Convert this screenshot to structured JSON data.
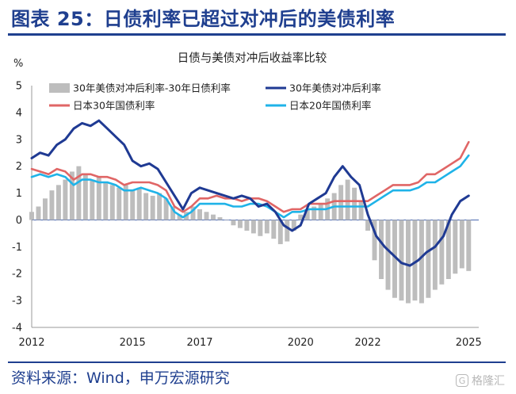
{
  "header": {
    "title": "图表 25：日债利率已超过对冲后的美债利率"
  },
  "footer": {
    "source": "资料来源：Wind，申万宏源研究",
    "watermark": "格隆汇",
    "watermark_logo": "G"
  },
  "colors": {
    "spread": "#bdbdbd",
    "us_hedged": "#1f3a93",
    "jp30": "#e06666",
    "jp20": "#1fb3e8",
    "brand": "#1f3f8f"
  },
  "chart_data": {
    "type": "line",
    "title": "日债与美债对冲后收益率比较",
    "ylabel": "%",
    "ylim": [
      -4,
      5
    ],
    "yticks": [
      5,
      4,
      3,
      2,
      1,
      0,
      -1,
      -2,
      -3,
      -4
    ],
    "xlim": [
      2012,
      2025.3
    ],
    "xticks": [
      2012,
      2015,
      2017,
      2020,
      2022,
      2025
    ],
    "legend": "top",
    "series": [
      {
        "name": "30年美债对冲后利率-30年日债利率",
        "type": "bar",
        "x": [
          2012.0,
          2012.2,
          2012.4,
          2012.6,
          2012.8,
          2013.0,
          2013.2,
          2013.4,
          2013.6,
          2013.8,
          2014.0,
          2014.2,
          2014.4,
          2014.6,
          2014.8,
          2015.0,
          2015.2,
          2015.4,
          2015.6,
          2015.8,
          2016.0,
          2016.2,
          2016.4,
          2016.6,
          2016.8,
          2017.0,
          2017.2,
          2017.4,
          2017.6,
          2017.8,
          2018.0,
          2018.2,
          2018.4,
          2018.6,
          2018.8,
          2019.0,
          2019.2,
          2019.4,
          2019.6,
          2019.8,
          2020.0,
          2020.2,
          2020.4,
          2020.6,
          2020.8,
          2021.0,
          2021.2,
          2021.4,
          2021.6,
          2021.8,
          2022.0,
          2022.2,
          2022.4,
          2022.6,
          2022.8,
          2023.0,
          2023.2,
          2023.4,
          2023.6,
          2023.8,
          2024.0,
          2024.2,
          2024.4,
          2024.6,
          2024.8,
          2025.0
        ],
        "values": [
          0.3,
          0.5,
          0.8,
          1.1,
          1.3,
          1.5,
          1.8,
          2.0,
          1.7,
          1.5,
          1.6,
          1.4,
          1.3,
          1.2,
          1.3,
          1.1,
          1.2,
          1.0,
          0.9,
          1.0,
          0.8,
          0.5,
          0.2,
          0.3,
          0.5,
          0.4,
          0.3,
          0.2,
          0.1,
          0.0,
          -0.2,
          -0.3,
          -0.4,
          -0.5,
          -0.6,
          -0.5,
          -0.7,
          -0.9,
          -0.8,
          -0.4,
          0.2,
          0.4,
          0.5,
          0.6,
          0.8,
          1.0,
          1.3,
          1.5,
          1.2,
          0.7,
          -0.4,
          -1.5,
          -2.2,
          -2.6,
          -2.9,
          -3.0,
          -3.1,
          -3.0,
          -3.1,
          -2.9,
          -2.6,
          -2.4,
          -2.2,
          -2.0,
          -1.8,
          -1.9
        ]
      },
      {
        "name": "30年美债对冲后利率",
        "type": "line",
        "x": [
          2012.0,
          2012.25,
          2012.5,
          2012.75,
          2013.0,
          2013.25,
          2013.5,
          2013.75,
          2014.0,
          2014.25,
          2014.5,
          2014.75,
          2015.0,
          2015.25,
          2015.5,
          2015.75,
          2016.0,
          2016.25,
          2016.5,
          2016.75,
          2017.0,
          2017.25,
          2017.5,
          2017.75,
          2018.0,
          2018.25,
          2018.5,
          2018.75,
          2019.0,
          2019.25,
          2019.5,
          2019.75,
          2020.0,
          2020.25,
          2020.5,
          2020.75,
          2021.0,
          2021.25,
          2021.5,
          2021.75,
          2022.0,
          2022.25,
          2022.5,
          2022.75,
          2023.0,
          2023.25,
          2023.5,
          2023.75,
          2024.0,
          2024.25,
          2024.5,
          2024.75,
          2025.0
        ],
        "values": [
          2.3,
          2.5,
          2.4,
          2.8,
          3.0,
          3.4,
          3.6,
          3.5,
          3.7,
          3.4,
          3.1,
          2.8,
          2.2,
          2.0,
          2.1,
          1.9,
          1.4,
          0.9,
          0.4,
          1.0,
          1.2,
          1.1,
          1.0,
          0.9,
          0.8,
          0.9,
          0.8,
          0.5,
          0.6,
          0.3,
          -0.2,
          -0.4,
          -0.2,
          0.6,
          0.8,
          1.0,
          1.6,
          2.0,
          1.6,
          1.3,
          0.2,
          -0.6,
          -1.0,
          -1.3,
          -1.6,
          -1.7,
          -1.5,
          -1.2,
          -1.0,
          -0.6,
          0.2,
          0.7,
          0.9
        ]
      },
      {
        "name": "日本30年国债利率",
        "type": "line",
        "x": [
          2012.0,
          2012.25,
          2012.5,
          2012.75,
          2013.0,
          2013.25,
          2013.5,
          2013.75,
          2014.0,
          2014.25,
          2014.5,
          2014.75,
          2015.0,
          2015.25,
          2015.5,
          2015.75,
          2016.0,
          2016.25,
          2016.5,
          2016.75,
          2017.0,
          2017.25,
          2017.5,
          2017.75,
          2018.0,
          2018.25,
          2018.5,
          2018.75,
          2019.0,
          2019.25,
          2019.5,
          2019.75,
          2020.0,
          2020.25,
          2020.5,
          2020.75,
          2021.0,
          2021.25,
          2021.5,
          2021.75,
          2022.0,
          2022.25,
          2022.5,
          2022.75,
          2023.0,
          2023.25,
          2023.5,
          2023.75,
          2024.0,
          2024.25,
          2024.5,
          2024.75,
          2025.0
        ],
        "values": [
          1.9,
          1.8,
          1.7,
          1.9,
          1.8,
          1.5,
          1.7,
          1.7,
          1.6,
          1.6,
          1.5,
          1.3,
          1.4,
          1.4,
          1.4,
          1.3,
          1.1,
          0.5,
          0.3,
          0.5,
          0.8,
          0.8,
          0.9,
          0.8,
          0.8,
          0.7,
          0.8,
          0.8,
          0.7,
          0.5,
          0.3,
          0.4,
          0.4,
          0.6,
          0.6,
          0.6,
          0.7,
          0.7,
          0.7,
          0.7,
          0.7,
          0.9,
          1.1,
          1.3,
          1.3,
          1.3,
          1.4,
          1.7,
          1.7,
          1.9,
          2.1,
          2.3,
          2.9
        ]
      },
      {
        "name": "日本20年国债利率",
        "type": "line",
        "x": [
          2012.0,
          2012.25,
          2012.5,
          2012.75,
          2013.0,
          2013.25,
          2013.5,
          2013.75,
          2014.0,
          2014.25,
          2014.5,
          2014.75,
          2015.0,
          2015.25,
          2015.5,
          2015.75,
          2016.0,
          2016.25,
          2016.5,
          2016.75,
          2017.0,
          2017.25,
          2017.5,
          2017.75,
          2018.0,
          2018.25,
          2018.5,
          2018.75,
          2019.0,
          2019.25,
          2019.5,
          2019.75,
          2020.0,
          2020.25,
          2020.5,
          2020.75,
          2021.0,
          2021.25,
          2021.5,
          2021.75,
          2022.0,
          2022.25,
          2022.5,
          2022.75,
          2023.0,
          2023.25,
          2023.5,
          2023.75,
          2024.0,
          2024.25,
          2024.5,
          2024.75,
          2025.0
        ],
        "values": [
          1.6,
          1.7,
          1.6,
          1.7,
          1.6,
          1.3,
          1.5,
          1.5,
          1.4,
          1.4,
          1.3,
          1.1,
          1.1,
          1.2,
          1.1,
          1.0,
          0.8,
          0.3,
          0.1,
          0.3,
          0.6,
          0.6,
          0.6,
          0.6,
          0.5,
          0.5,
          0.6,
          0.6,
          0.5,
          0.3,
          0.1,
          0.3,
          0.3,
          0.4,
          0.4,
          0.4,
          0.5,
          0.5,
          0.5,
          0.5,
          0.5,
          0.7,
          0.9,
          1.1,
          1.1,
          1.1,
          1.2,
          1.4,
          1.4,
          1.6,
          1.8,
          2.0,
          2.4
        ]
      }
    ]
  }
}
